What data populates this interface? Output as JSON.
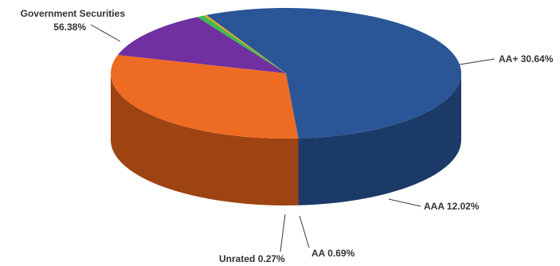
{
  "chart_data": {
    "type": "pie",
    "style": "3d",
    "slices": [
      {
        "label": "Government Securities",
        "value": 56.38,
        "value_label": "56.38%",
        "color": "#2a5597",
        "side_color": "#1c3a68"
      },
      {
        "label": "AA+",
        "value": 30.64,
        "value_label": "30.64%",
        "color": "#ee6b23",
        "side_color": "#9e4312"
      },
      {
        "label": "AAA",
        "value": 12.02,
        "value_label": "12.02%",
        "color": "#7030a0",
        "side_color": "#3e1a58"
      },
      {
        "label": "AA",
        "value": 0.69,
        "value_label": "0.69%",
        "color": "#3dba55",
        "side_color": "#267a37"
      },
      {
        "label": "Unrated",
        "value": 0.27,
        "value_label": "0.27%",
        "color": "#e6a619",
        "side_color": "#a0720f"
      }
    ]
  }
}
